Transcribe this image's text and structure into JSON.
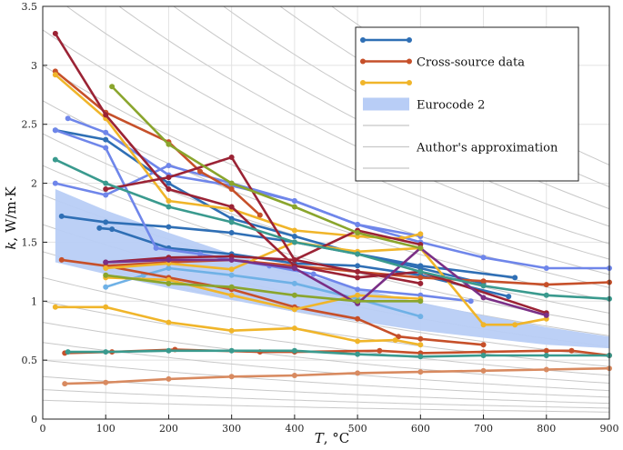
{
  "chart_data": {
    "type": "line",
    "title": "",
    "xlabel": {
      "var": "T",
      "unit": ", °C"
    },
    "ylabel": {
      "var": "k",
      "unit": ", W/m·K"
    },
    "xlim": [
      0,
      900
    ],
    "ylim": [
      0,
      3.5
    ],
    "xticks": [
      0,
      100,
      200,
      300,
      400,
      500,
      600,
      700,
      800,
      900
    ],
    "yticks": [
      0,
      0.5,
      1,
      1.5,
      2,
      2.5,
      3,
      3.5
    ],
    "grid": true,
    "legend_position": "top-right",
    "legend": [
      {
        "label": "",
        "color": "#2f6fb5",
        "style": "line-marker"
      },
      {
        "label": "Cross-source data",
        "color": "#c6502a",
        "style": "line-marker"
      },
      {
        "label": "",
        "color": "#f0b52a",
        "style": "line-marker"
      },
      {
        "label": "Eurocode 2",
        "color": "#b8cdf6",
        "style": "patch"
      },
      {
        "label": "",
        "color": "#c8c8c8",
        "style": "line"
      },
      {
        "label": "Author's approximation",
        "color": "#c8c8c8",
        "style": "line"
      },
      {
        "label": "",
        "color": "#c8c8c8",
        "style": "line"
      }
    ],
    "eurocode_band": {
      "color": "#b8cdf6",
      "x": [
        20,
        100,
        200,
        300,
        400,
        500,
        600,
        700,
        800,
        900
      ],
      "upper": [
        1.95,
        1.77,
        1.58,
        1.4,
        1.25,
        1.11,
        0.99,
        0.88,
        0.78,
        0.7
      ],
      "lower": [
        1.33,
        1.23,
        1.11,
        1.01,
        0.91,
        0.83,
        0.75,
        0.69,
        0.63,
        0.6
      ]
    },
    "approximation_curves": {
      "color": "#c8c8c8",
      "decay": 0.0011,
      "k0": [
        0.16,
        0.25,
        0.36,
        0.5,
        0.65,
        0.82,
        1.0,
        1.2,
        1.42,
        1.65,
        1.9,
        2.15,
        2.42,
        2.7,
        3.0,
        3.3,
        3.65,
        4.0,
        4.4,
        4.8,
        5.3,
        5.8
      ]
    },
    "series": [
      {
        "color": "#2f6fb5",
        "x": [
          20,
          100,
          200,
          300,
          400,
          500,
          600,
          700
        ],
        "y": [
          2.45,
          2.37,
          2.0,
          1.7,
          1.55,
          1.4,
          1.28,
          1.15
        ]
      },
      {
        "color": "#2f6fb5",
        "x": [
          30,
          100,
          200,
          300,
          400,
          500,
          600,
          750
        ],
        "y": [
          1.72,
          1.67,
          1.63,
          1.58,
          1.5,
          1.4,
          1.3,
          1.2
        ]
      },
      {
        "color": "#2f6fb5",
        "x": [
          90,
          110,
          200,
          300,
          400,
          500,
          600,
          740
        ],
        "y": [
          1.62,
          1.61,
          1.45,
          1.4,
          1.32,
          1.3,
          1.22,
          1.04
        ]
      },
      {
        "color": "#6f86ea",
        "x": [
          20,
          100,
          200,
          300,
          400,
          500,
          600,
          700,
          800,
          900
        ],
        "y": [
          2.0,
          1.9,
          2.15,
          2.0,
          1.85,
          1.65,
          1.5,
          1.37,
          1.28,
          1.28
        ]
      },
      {
        "color": "#6f86ea",
        "x": [
          40,
          100,
          200,
          300,
          400,
          500,
          600
        ],
        "y": [
          2.55,
          2.43,
          2.07,
          1.98,
          1.85,
          1.65,
          1.55
        ]
      },
      {
        "color": "#6f86ea",
        "x": [
          20,
          100,
          180,
          250,
          300,
          360,
          430,
          500,
          600,
          680
        ],
        "y": [
          2.45,
          2.3,
          1.45,
          1.4,
          1.35,
          1.3,
          1.23,
          1.1,
          1.05,
          1.0
        ]
      },
      {
        "color": "#6fb1e6",
        "x": [
          100,
          160,
          200,
          300,
          400,
          500,
          600
        ],
        "y": [
          1.12,
          1.22,
          1.28,
          1.22,
          1.15,
          1.02,
          0.87
        ]
      },
      {
        "color": "#c6502a",
        "x": [
          20,
          100,
          200,
          250,
          300,
          345
        ],
        "y": [
          2.95,
          2.6,
          2.35,
          2.1,
          1.95,
          1.73
        ]
      },
      {
        "color": "#c6502a",
        "x": [
          30,
          100,
          200,
          300,
          400,
          500,
          600,
          700,
          800,
          900
        ],
        "y": [
          1.35,
          1.3,
          1.33,
          1.35,
          1.3,
          1.25,
          1.2,
          1.17,
          1.14,
          1.16
        ]
      },
      {
        "color": "#c6502a",
        "x": [
          100,
          200,
          300,
          400,
          500,
          565,
          600,
          700
        ],
        "y": [
          1.3,
          1.2,
          1.1,
          0.95,
          0.85,
          0.7,
          0.68,
          0.63
        ]
      },
      {
        "color": "#c6502a",
        "x": [
          35,
          110,
          210,
          345,
          400,
          535,
          600,
          700,
          800,
          840,
          900
        ],
        "y": [
          0.56,
          0.57,
          0.59,
          0.57,
          0.57,
          0.58,
          0.56,
          0.57,
          0.58,
          0.58,
          0.54
        ]
      },
      {
        "color": "#d88a60",
        "x": [
          35,
          100,
          200,
          300,
          400,
          500,
          600,
          700,
          800,
          900
        ],
        "y": [
          0.3,
          0.31,
          0.34,
          0.36,
          0.37,
          0.39,
          0.4,
          0.41,
          0.42,
          0.43
        ]
      },
      {
        "color": "#f0b52a",
        "x": [
          20,
          100,
          200,
          300,
          400,
          500,
          570,
          600
        ],
        "y": [
          2.92,
          2.55,
          1.85,
          1.78,
          1.6,
          1.55,
          1.53,
          1.57
        ]
      },
      {
        "color": "#f0b52a",
        "x": [
          20,
          100,
          200,
          300,
          400,
          500,
          560,
          600
        ],
        "y": [
          0.95,
          0.95,
          0.82,
          0.75,
          0.77,
          0.66,
          0.67,
          0.63
        ]
      },
      {
        "color": "#f0b52a",
        "x": [
          100,
          200,
          300,
          400,
          500,
          600,
          700,
          750,
          800
        ],
        "y": [
          1.28,
          1.32,
          1.27,
          1.5,
          1.42,
          1.45,
          0.8,
          0.8,
          0.85
        ]
      },
      {
        "color": "#f0b52a",
        "x": [
          100,
          200,
          300,
          400,
          500,
          600
        ],
        "y": [
          1.2,
          1.18,
          1.05,
          0.93,
          1.05,
          1.02
        ]
      },
      {
        "color": "#9b2335",
        "x": [
          20,
          100,
          200,
          300,
          400,
          500,
          600,
          800
        ],
        "y": [
          3.27,
          2.58,
          1.95,
          1.8,
          1.3,
          1.2,
          1.25,
          0.9
        ]
      },
      {
        "color": "#9b2335",
        "x": [
          100,
          200,
          300,
          400,
          500,
          600
        ],
        "y": [
          1.95,
          2.05,
          2.22,
          1.35,
          1.6,
          1.48
        ]
      },
      {
        "color": "#9b2335",
        "x": [
          100,
          200,
          300,
          400,
          500,
          600
        ],
        "y": [
          1.33,
          1.37,
          1.38,
          1.35,
          1.25,
          1.15
        ]
      },
      {
        "color": "#7a2f86",
        "x": [
          100,
          200,
          300,
          400,
          500,
          600,
          700,
          800
        ],
        "y": [
          1.33,
          1.35,
          1.35,
          1.28,
          0.98,
          1.45,
          1.03,
          0.88
        ]
      },
      {
        "color": "#8aa52d",
        "x": [
          110,
          200,
          300,
          400,
          500,
          600
        ],
        "y": [
          2.82,
          2.33,
          2.0,
          1.8,
          1.58,
          1.45
        ]
      },
      {
        "color": "#8aa52d",
        "x": [
          100,
          200,
          300,
          400,
          500,
          600
        ],
        "y": [
          1.22,
          1.15,
          1.12,
          1.05,
          1.0,
          1.0
        ]
      },
      {
        "color": "#3a9a8e",
        "x": [
          20,
          100,
          200,
          300,
          400,
          500,
          600,
          700,
          800,
          900
        ],
        "y": [
          2.2,
          2.0,
          1.8,
          1.67,
          1.5,
          1.4,
          1.25,
          1.13,
          1.05,
          1.02
        ]
      },
      {
        "color": "#3a9a8e",
        "x": [
          40,
          100,
          200,
          300,
          400,
          500,
          600,
          700,
          800,
          900
        ],
        "y": [
          0.57,
          0.57,
          0.58,
          0.58,
          0.58,
          0.55,
          0.53,
          0.54,
          0.54,
          0.54
        ]
      }
    ]
  }
}
